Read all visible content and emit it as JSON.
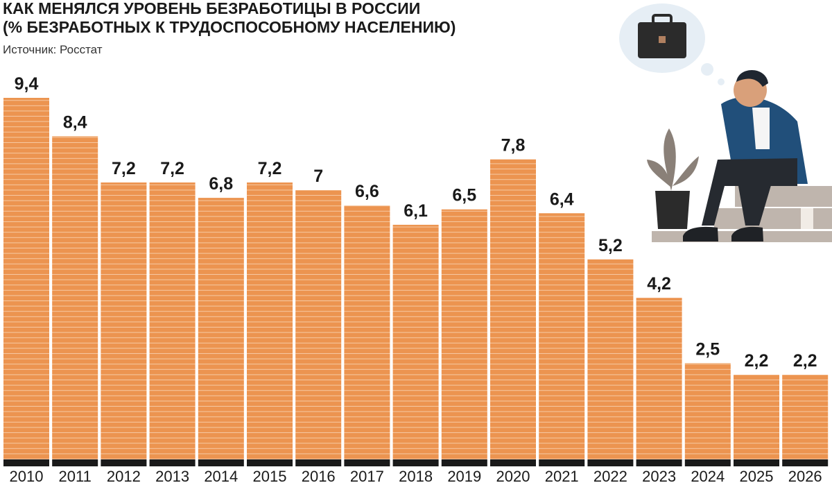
{
  "chart_data": {
    "type": "bar",
    "title": "КАК МЕНЯЛСЯ УРОВЕНЬ БЕЗРАБОТИЦЫ В РОССИИ",
    "subtitle": "(% БЕЗРАБОТНЫХ К ТРУДОСПОСОБНОМУ НАСЕЛЕНИЮ)",
    "source": "Источник: Росстат",
    "categories": [
      "2010",
      "2011",
      "2012",
      "2013",
      "2014",
      "2015",
      "2016",
      "2017",
      "2018",
      "2019",
      "2020",
      "2021",
      "2022",
      "2023",
      "2024",
      "2025",
      "2026"
    ],
    "values": [
      9.4,
      8.4,
      7.2,
      7.2,
      6.8,
      7.2,
      7,
      6.6,
      6.1,
      6.5,
      7.8,
      6.4,
      5.2,
      4.2,
      2.5,
      2.2,
      2.2
    ],
    "value_labels": [
      "9,4",
      "8,4",
      "7,2",
      "7,2",
      "6,8",
      "7,2",
      "7",
      "6,6",
      "6,1",
      "6,5",
      "7,8",
      "6,4",
      "5,2",
      "4,2",
      "2,5",
      "2,2",
      "2,2"
    ],
    "color": "#ec9450"
  }
}
